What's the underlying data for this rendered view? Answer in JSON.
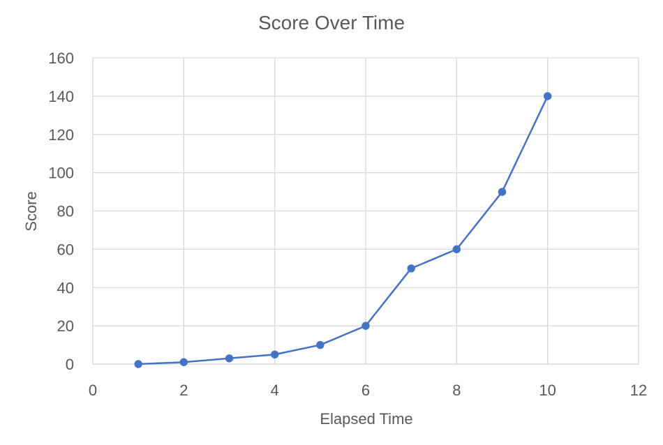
{
  "chart_data": {
    "type": "scatter",
    "title": "Score Over Time",
    "xlabel": "Elapsed Time",
    "ylabel": "Score",
    "xlim": [
      0,
      12
    ],
    "ylim": [
      0,
      160
    ],
    "xticks": [
      0,
      2,
      4,
      6,
      8,
      10,
      12
    ],
    "yticks": [
      0,
      20,
      40,
      60,
      80,
      100,
      120,
      140,
      160
    ],
    "grid": true,
    "legend": "none",
    "series": [
      {
        "x": [
          1,
          2,
          3,
          4,
          5,
          6,
          7,
          8,
          9,
          10
        ],
        "y": [
          0,
          1,
          3,
          5,
          10,
          20,
          50,
          60,
          90,
          140
        ],
        "color": "#4472C4",
        "markers": true,
        "line": true
      }
    ]
  }
}
